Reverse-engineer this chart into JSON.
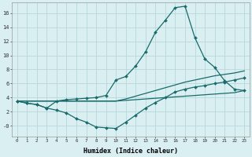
{
  "xlabel": "Humidex (Indice chaleur)",
  "bg_color": "#d9eff2",
  "grid_color": "#b8d8db",
  "line_color": "#1a6b6b",
  "xlim": [
    -0.5,
    23.5
  ],
  "ylim": [
    -1.5,
    17.5
  ],
  "ytick_values": [
    0,
    2,
    4,
    6,
    8,
    10,
    12,
    14,
    16
  ],
  "ytick_labels": [
    "-0",
    "2",
    "4",
    "6",
    "8",
    "10",
    "12",
    "14",
    "16"
  ],
  "line1_x": [
    0,
    1,
    2,
    3,
    4,
    5,
    6,
    7,
    8,
    9,
    10,
    11,
    12,
    13,
    14,
    15,
    16,
    17,
    18,
    19,
    20,
    21,
    22,
    23
  ],
  "line1_y": [
    3.5,
    3.2,
    3.0,
    2.5,
    3.5,
    3.7,
    3.8,
    3.9,
    4.0,
    4.3,
    6.5,
    7.0,
    8.5,
    10.5,
    13.3,
    15.0,
    16.8,
    17.0,
    12.5,
    9.5,
    8.3,
    6.4,
    5.2,
    5.0
  ],
  "line2_x": [
    0,
    1,
    2,
    3,
    4,
    5,
    6,
    7,
    8,
    9,
    10,
    11,
    12,
    13,
    14,
    15,
    16,
    17,
    18,
    19,
    20,
    21,
    22,
    23
  ],
  "line2_y": [
    3.5,
    3.2,
    3.0,
    2.5,
    2.2,
    1.8,
    1.0,
    0.5,
    -0.2,
    -0.3,
    -0.4,
    0.5,
    1.5,
    2.5,
    3.3,
    4.0,
    4.8,
    5.2,
    5.5,
    5.7,
    6.0,
    6.2,
    6.5,
    6.8
  ],
  "line3_x": [
    0,
    10,
    11,
    12,
    13,
    14,
    15,
    16,
    17,
    18,
    19,
    20,
    21,
    22,
    23
  ],
  "line3_y": [
    3.5,
    3.5,
    3.8,
    4.2,
    4.6,
    5.0,
    5.4,
    5.8,
    6.2,
    6.5,
    6.8,
    7.1,
    7.3,
    7.5,
    7.8
  ],
  "line4_x": [
    0,
    10,
    11,
    12,
    13,
    14,
    15,
    16,
    17,
    18,
    19,
    20,
    21,
    22,
    23
  ],
  "line4_y": [
    3.5,
    3.5,
    3.6,
    3.7,
    3.8,
    3.9,
    4.0,
    4.1,
    4.2,
    4.3,
    4.4,
    4.5,
    4.6,
    4.7,
    5.0
  ]
}
